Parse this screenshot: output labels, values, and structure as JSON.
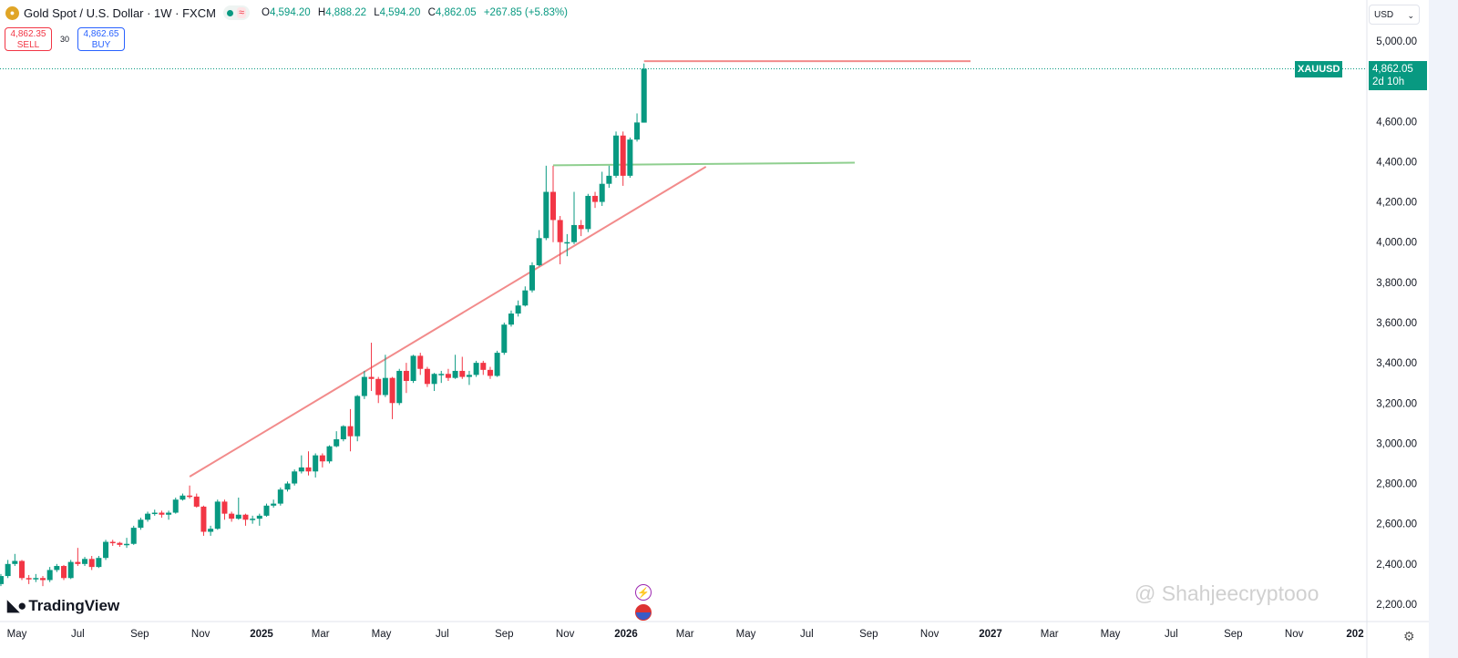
{
  "header": {
    "symbol_title": "Gold Spot / U.S. Dollar · 1W · FXCM",
    "ohlc": {
      "o_label": "O",
      "o": "4,594.20",
      "h_label": "H",
      "h": "4,888.22",
      "l_label": "L",
      "l": "4,594.20",
      "c_label": "C",
      "c": "4,862.05",
      "change": "+267.85 (+5.83%)"
    },
    "status_icon": "market-open-dot",
    "sell": {
      "price": "4,862.35",
      "label": "SELL"
    },
    "spread": "30",
    "buy": {
      "price": "4,862.65",
      "label": "BUY"
    }
  },
  "currency_select": "USD",
  "last_price": {
    "symbol": "XAUUSD",
    "price": "4,862.05",
    "countdown": "2d 10h"
  },
  "branding": {
    "logo": "TradingView",
    "watermark": "@ Shahjeecryptooo"
  },
  "colors": {
    "up": "#089981",
    "down": "#f23645",
    "trendline": "#f28b8b",
    "support_line": "#8fcf8f",
    "price_line": "#089981"
  },
  "chart_data": {
    "type": "candlestick",
    "interval": "1W",
    "ylim": [
      2200,
      5000
    ],
    "yticks": [
      "2,200.00",
      "2,400.00",
      "2,600.00",
      "2,800.00",
      "3,000.00",
      "3,200.00",
      "3,400.00",
      "3,600.00",
      "3,800.00",
      "4,000.00",
      "4,200.00",
      "4,400.00",
      "4,600.00",
      "4,800.00",
      "5,000.00"
    ],
    "ytick_values": [
      2200,
      2400,
      2600,
      2800,
      3000,
      3200,
      3400,
      3600,
      3800,
      4000,
      4200,
      4400,
      4600,
      4800,
      5000
    ],
    "xticks": [
      {
        "label": "May",
        "date": "2024-05-01"
      },
      {
        "label": "Jul",
        "date": "2024-07-01"
      },
      {
        "label": "Sep",
        "date": "2024-09-01"
      },
      {
        "label": "Nov",
        "date": "2024-11-01"
      },
      {
        "label": "2025",
        "date": "2025-01-01",
        "bold": true
      },
      {
        "label": "Mar",
        "date": "2025-03-01"
      },
      {
        "label": "May",
        "date": "2025-05-01"
      },
      {
        "label": "Jul",
        "date": "2025-07-01"
      },
      {
        "label": "Sep",
        "date": "2025-09-01"
      },
      {
        "label": "Nov",
        "date": "2025-11-01"
      },
      {
        "label": "2026",
        "date": "2026-01-01",
        "bold": true
      },
      {
        "label": "Mar",
        "date": "2026-03-01"
      },
      {
        "label": "May",
        "date": "2026-05-01"
      },
      {
        "label": "Jul",
        "date": "2026-07-01"
      },
      {
        "label": "Sep",
        "date": "2026-09-01"
      },
      {
        "label": "Nov",
        "date": "2026-11-01"
      },
      {
        "label": "2027",
        "date": "2027-01-01",
        "bold": true
      },
      {
        "label": "Mar",
        "date": "2027-03-01"
      },
      {
        "label": "May",
        "date": "2027-05-01"
      },
      {
        "label": "Jul",
        "date": "2027-07-01"
      },
      {
        "label": "Sep",
        "date": "2027-09-01"
      },
      {
        "label": "Nov",
        "date": "2027-11-01"
      },
      {
        "label": "202",
        "date": "2028-01-01",
        "bold": true
      }
    ],
    "candles": [
      [
        "2024-04-01",
        2250,
        2350,
        2230,
        2330
      ],
      [
        "2024-04-08",
        2330,
        2360,
        2280,
        2300
      ],
      [
        "2024-04-15",
        2300,
        2350,
        2290,
        2340
      ],
      [
        "2024-04-22",
        2340,
        2420,
        2330,
        2400
      ],
      [
        "2024-04-29",
        2400,
        2450,
        2390,
        2415
      ],
      [
        "2024-05-06",
        2415,
        2420,
        2320,
        2330
      ],
      [
        "2024-05-13",
        2330,
        2345,
        2300,
        2325
      ],
      [
        "2024-05-20",
        2325,
        2350,
        2310,
        2330
      ],
      [
        "2024-05-27",
        2330,
        2340,
        2290,
        2320
      ],
      [
        "2024-06-03",
        2320,
        2385,
        2310,
        2370
      ],
      [
        "2024-06-10",
        2370,
        2400,
        2360,
        2390
      ],
      [
        "2024-06-17",
        2390,
        2395,
        2320,
        2330
      ],
      [
        "2024-06-24",
        2330,
        2420,
        2325,
        2410
      ],
      [
        "2024-07-01",
        2410,
        2480,
        2390,
        2400
      ],
      [
        "2024-07-08",
        2400,
        2435,
        2390,
        2425
      ],
      [
        "2024-07-15",
        2425,
        2440,
        2370,
        2385
      ],
      [
        "2024-07-22",
        2385,
        2440,
        2380,
        2430
      ],
      [
        "2024-07-29",
        2430,
        2520,
        2420,
        2510
      ],
      [
        "2024-08-05",
        2510,
        2520,
        2490,
        2505
      ],
      [
        "2024-08-12",
        2505,
        2510,
        2485,
        2495
      ],
      [
        "2024-08-19",
        2495,
        2530,
        2480,
        2500
      ],
      [
        "2024-08-26",
        2500,
        2590,
        2495,
        2580
      ],
      [
        "2024-09-02",
        2580,
        2630,
        2570,
        2620
      ],
      [
        "2024-09-09",
        2620,
        2660,
        2610,
        2650
      ],
      [
        "2024-09-16",
        2650,
        2670,
        2640,
        2655
      ],
      [
        "2024-09-23",
        2655,
        2665,
        2630,
        2645
      ],
      [
        "2024-09-30",
        2645,
        2665,
        2620,
        2655
      ],
      [
        "2024-10-07",
        2655,
        2730,
        2650,
        2720
      ],
      [
        "2024-10-14",
        2720,
        2750,
        2715,
        2740
      ],
      [
        "2024-10-21",
        2740,
        2790,
        2725,
        2735
      ],
      [
        "2024-10-28",
        2735,
        2750,
        2680,
        2685
      ],
      [
        "2024-11-04",
        2685,
        2690,
        2540,
        2560
      ],
      [
        "2024-11-11",
        2560,
        2590,
        2540,
        2575
      ],
      [
        "2024-11-18",
        2575,
        2720,
        2570,
        2710
      ],
      [
        "2024-11-25",
        2710,
        2720,
        2620,
        2650
      ],
      [
        "2024-12-02",
        2650,
        2660,
        2610,
        2625
      ],
      [
        "2024-12-09",
        2625,
        2730,
        2620,
        2645
      ],
      [
        "2024-12-16",
        2645,
        2650,
        2590,
        2620
      ],
      [
        "2024-12-23",
        2620,
        2640,
        2600,
        2625
      ],
      [
        "2024-12-30",
        2625,
        2650,
        2590,
        2640
      ],
      [
        "2025-01-06",
        2640,
        2700,
        2635,
        2690
      ],
      [
        "2025-01-13",
        2690,
        2720,
        2680,
        2700
      ],
      [
        "2025-01-20",
        2700,
        2780,
        2690,
        2770
      ],
      [
        "2025-01-27",
        2770,
        2810,
        2760,
        2800
      ],
      [
        "2025-02-03",
        2800,
        2870,
        2790,
        2860
      ],
      [
        "2025-02-10",
        2860,
        2940,
        2850,
        2880
      ],
      [
        "2025-02-17",
        2880,
        2960,
        2840,
        2860
      ],
      [
        "2025-02-24",
        2860,
        2950,
        2830,
        2940
      ],
      [
        "2025-03-03",
        2940,
        2950,
        2880,
        2910
      ],
      [
        "2025-03-10",
        2910,
        2990,
        2900,
        2985
      ],
      [
        "2025-03-17",
        2985,
        3060,
        2980,
        3020
      ],
      [
        "2025-03-24",
        3020,
        3090,
        3010,
        3085
      ],
      [
        "2025-03-31",
        3085,
        3170,
        2960,
        3035
      ],
      [
        "2025-04-07",
        3035,
        3240,
        3010,
        3235
      ],
      [
        "2025-04-14",
        3235,
        3360,
        3220,
        3330
      ],
      [
        "2025-04-21",
        3330,
        3500,
        3260,
        3320
      ],
      [
        "2025-04-28",
        3320,
        3330,
        3200,
        3240
      ],
      [
        "2025-05-05",
        3240,
        3440,
        3230,
        3325
      ],
      [
        "2025-05-12",
        3325,
        3330,
        3120,
        3200
      ],
      [
        "2025-05-19",
        3200,
        3370,
        3190,
        3360
      ],
      [
        "2025-05-26",
        3360,
        3400,
        3250,
        3310
      ],
      [
        "2025-06-02",
        3310,
        3440,
        3300,
        3435
      ],
      [
        "2025-06-09",
        3435,
        3450,
        3340,
        3370
      ],
      [
        "2025-06-16",
        3370,
        3380,
        3280,
        3295
      ],
      [
        "2025-06-23",
        3295,
        3350,
        3260,
        3345
      ],
      [
        "2025-06-30",
        3345,
        3360,
        3300,
        3345
      ],
      [
        "2025-07-07",
        3345,
        3370,
        3310,
        3325
      ],
      [
        "2025-07-14",
        3325,
        3440,
        3320,
        3360
      ],
      [
        "2025-07-21",
        3360,
        3430,
        3320,
        3330
      ],
      [
        "2025-07-28",
        3330,
        3360,
        3290,
        3340
      ],
      [
        "2025-08-04",
        3340,
        3410,
        3330,
        3400
      ],
      [
        "2025-08-11",
        3400,
        3410,
        3340,
        3365
      ],
      [
        "2025-08-18",
        3365,
        3380,
        3320,
        3335
      ],
      [
        "2025-08-25",
        3335,
        3460,
        3330,
        3450
      ],
      [
        "2025-09-01",
        3450,
        3600,
        3440,
        3590
      ],
      [
        "2025-09-08",
        3590,
        3660,
        3580,
        3645
      ],
      [
        "2025-09-15",
        3645,
        3710,
        3630,
        3685
      ],
      [
        "2025-09-22",
        3685,
        3780,
        3680,
        3760
      ],
      [
        "2025-09-29",
        3760,
        3900,
        3750,
        3885
      ],
      [
        "2025-10-06",
        3885,
        4060,
        3880,
        4020
      ],
      [
        "2025-10-13",
        4020,
        4380,
        4010,
        4250
      ],
      [
        "2025-10-20",
        4250,
        4380,
        4000,
        4110
      ],
      [
        "2025-10-27",
        4110,
        4130,
        3890,
        4000
      ],
      [
        "2025-11-03",
        4000,
        4040,
        3930,
        4000
      ],
      [
        "2025-11-10",
        4000,
        4250,
        3990,
        4085
      ],
      [
        "2025-11-17",
        4085,
        4110,
        4030,
        4065
      ],
      [
        "2025-11-24",
        4065,
        4240,
        4050,
        4230
      ],
      [
        "2025-12-01",
        4230,
        4250,
        4170,
        4200
      ],
      [
        "2025-12-08",
        4200,
        4350,
        4180,
        4290
      ],
      [
        "2025-12-15",
        4290,
        4380,
        4270,
        4330
      ],
      [
        "2025-12-22",
        4330,
        4550,
        4320,
        4530
      ],
      [
        "2025-12-29",
        4530,
        4550,
        4280,
        4330
      ],
      [
        "2026-01-05",
        4330,
        4520,
        4320,
        4510
      ],
      [
        "2026-01-12",
        4510,
        4640,
        4500,
        4595
      ],
      [
        "2026-01-19",
        4594.2,
        4888.22,
        4594.2,
        4862.05
      ]
    ],
    "drawings": [
      {
        "kind": "trendline",
        "from": [
          "2024-10-21",
          2834
        ],
        "to": [
          "2026-03-22",
          4375
        ],
        "color": "#f28b8b"
      },
      {
        "kind": "horizontal",
        "from": [
          "2026-01-19",
          4900
        ],
        "to": [
          "2026-12-12",
          4900
        ],
        "color": "#f28b8b"
      },
      {
        "kind": "horizontal",
        "from": [
          "2025-10-20",
          4382
        ],
        "to": [
          "2026-08-18",
          4395
        ],
        "color": "#8fcf8f"
      }
    ],
    "last_price_line": 4862.05
  },
  "events": [
    {
      "icon": "lightning-icon"
    },
    {
      "icon": "us-flag-icon"
    }
  ]
}
